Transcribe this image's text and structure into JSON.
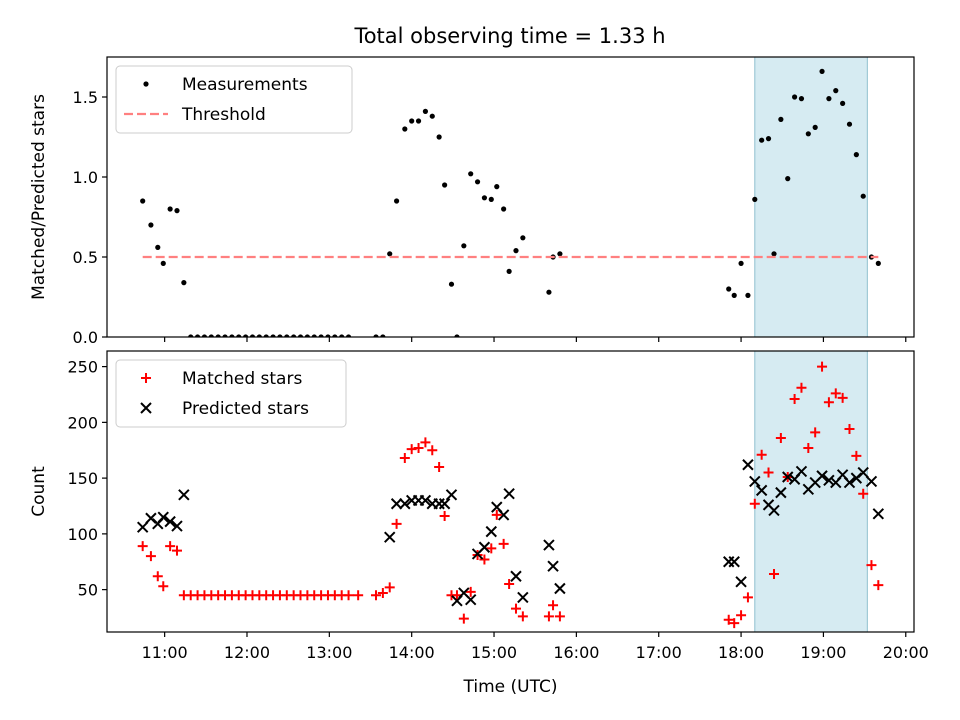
{
  "title": "Total observing time = 1.33 h",
  "chart_data": [
    {
      "type": "scatter",
      "panel": "top",
      "ylabel": "Matched/Predicted stars",
      "xlim": [
        "10:18",
        "20:06"
      ],
      "ylim": [
        0,
        1.75
      ],
      "yticks": [
        0.0,
        0.5,
        1.0,
        1.5
      ],
      "ytick_labels": [
        "0.0",
        "0.5",
        "1.0",
        "1.5"
      ],
      "grid": false,
      "legend_position": "upper-left",
      "highlight_span": [
        "18:10",
        "19:32"
      ],
      "series": [
        {
          "name": "Measurements",
          "marker": "dot",
          "color": "#000000",
          "points": [
            [
              "10:44",
              0.85
            ],
            [
              "10:50",
              0.7
            ],
            [
              "10:55",
              0.56
            ],
            [
              "10:59",
              0.46
            ],
            [
              "11:04",
              0.8
            ],
            [
              "11:09",
              0.79
            ],
            [
              "11:14",
              0.34
            ],
            [
              "11:19",
              0
            ],
            [
              "11:24",
              0
            ],
            [
              "11:29",
              0
            ],
            [
              "11:34",
              0
            ],
            [
              "11:39",
              0
            ],
            [
              "11:44",
              0
            ],
            [
              "11:49",
              0
            ],
            [
              "11:54",
              0
            ],
            [
              "11:59",
              0
            ],
            [
              "12:04",
              0
            ],
            [
              "12:09",
              0
            ],
            [
              "12:14",
              0
            ],
            [
              "12:19",
              0
            ],
            [
              "12:24",
              0
            ],
            [
              "12:29",
              0
            ],
            [
              "12:34",
              0
            ],
            [
              "12:39",
              0
            ],
            [
              "12:44",
              0
            ],
            [
              "12:49",
              0
            ],
            [
              "12:54",
              0
            ],
            [
              "12:59",
              0
            ],
            [
              "13:04",
              0
            ],
            [
              "13:09",
              0
            ],
            [
              "13:14",
              0
            ],
            [
              "13:34",
              0
            ],
            [
              "13:39",
              0
            ],
            [
              "13:44",
              0.52
            ],
            [
              "13:49",
              0.85
            ],
            [
              "13:55",
              1.3
            ],
            [
              "14:00",
              1.35
            ],
            [
              "14:05",
              1.35
            ],
            [
              "14:10",
              1.41
            ],
            [
              "14:15",
              1.38
            ],
            [
              "14:20",
              1.25
            ],
            [
              "14:24",
              0.95
            ],
            [
              "14:29",
              0.33
            ],
            [
              "14:33",
              0
            ],
            [
              "14:38",
              0.57
            ],
            [
              "14:43",
              1.02
            ],
            [
              "14:48",
              0.97
            ],
            [
              "14:53",
              0.87
            ],
            [
              "14:58",
              0.86
            ],
            [
              "15:02",
              0.94
            ],
            [
              "15:07",
              0.8
            ],
            [
              "15:11",
              0.41
            ],
            [
              "15:16",
              0.54
            ],
            [
              "15:21",
              0.62
            ],
            [
              "15:40",
              0.28
            ],
            [
              "15:43",
              0.5
            ],
            [
              "15:48",
              0.52
            ],
            [
              "17:51",
              0.3
            ],
            [
              "17:55",
              0.26
            ],
            [
              "18:00",
              0.46
            ],
            [
              "18:05",
              0.26
            ],
            [
              "18:10",
              0.86
            ],
            [
              "18:15",
              1.23
            ],
            [
              "18:20",
              1.24
            ],
            [
              "18:24",
              0.52
            ],
            [
              "18:29",
              1.36
            ],
            [
              "18:34",
              0.99
            ],
            [
              "18:39",
              1.5
            ],
            [
              "18:44",
              1.49
            ],
            [
              "18:49",
              1.27
            ],
            [
              "18:54",
              1.31
            ],
            [
              "18:59",
              1.66
            ],
            [
              "19:04",
              1.49
            ],
            [
              "19:09",
              1.54
            ],
            [
              "19:14",
              1.46
            ],
            [
              "19:19",
              1.33
            ],
            [
              "19:24",
              1.14
            ],
            [
              "19:29",
              0.88
            ],
            [
              "19:35",
              0.5
            ],
            [
              "19:40",
              0.46
            ]
          ]
        },
        {
          "name": "Threshold",
          "style": "dashed",
          "color": "#ff8080",
          "points": [
            [
              "10:44",
              0.5
            ],
            [
              "19:40",
              0.5
            ]
          ]
        }
      ]
    },
    {
      "type": "scatter",
      "panel": "bottom",
      "xlabel": "Time (UTC)",
      "ylabel": "Count",
      "xlim": [
        "10:18",
        "20:06"
      ],
      "ylim": [
        12,
        264
      ],
      "xticks": [
        "11:00",
        "12:00",
        "13:00",
        "14:00",
        "15:00",
        "16:00",
        "17:00",
        "18:00",
        "19:00",
        "20:00"
      ],
      "yticks": [
        50,
        100,
        150,
        200,
        250
      ],
      "ytick_labels": [
        "50",
        "100",
        "150",
        "200",
        "250"
      ],
      "grid": false,
      "legend_position": "upper-left",
      "highlight_span": [
        "18:10",
        "19:32"
      ],
      "series": [
        {
          "name": "Matched stars",
          "marker": "plus",
          "color": "#ff0000",
          "points": [
            [
              "10:44",
              89
            ],
            [
              "10:50",
              80
            ],
            [
              "10:55",
              62
            ],
            [
              "10:59",
              53
            ],
            [
              "11:04",
              89
            ],
            [
              "11:09",
              85
            ],
            [
              "11:14",
              45
            ],
            [
              "11:19",
              45
            ],
            [
              "11:24",
              45
            ],
            [
              "11:29",
              45
            ],
            [
              "11:34",
              45
            ],
            [
              "11:39",
              45
            ],
            [
              "11:44",
              45
            ],
            [
              "11:49",
              45
            ],
            [
              "11:54",
              45
            ],
            [
              "11:59",
              45
            ],
            [
              "12:04",
              45
            ],
            [
              "12:09",
              45
            ],
            [
              "12:14",
              45
            ],
            [
              "12:19",
              45
            ],
            [
              "12:24",
              45
            ],
            [
              "12:29",
              45
            ],
            [
              "12:34",
              45
            ],
            [
              "12:39",
              45
            ],
            [
              "12:44",
              45
            ],
            [
              "12:49",
              45
            ],
            [
              "12:54",
              45
            ],
            [
              "12:59",
              45
            ],
            [
              "13:04",
              45
            ],
            [
              "13:09",
              45
            ],
            [
              "13:14",
              45
            ],
            [
              "13:21",
              45
            ],
            [
              "13:34",
              45
            ],
            [
              "13:39",
              47
            ],
            [
              "13:44",
              52
            ],
            [
              "13:49",
              109
            ],
            [
              "13:55",
              168
            ],
            [
              "14:00",
              176
            ],
            [
              "14:05",
              177
            ],
            [
              "14:10",
              182
            ],
            [
              "14:15",
              175
            ],
            [
              "14:20",
              160
            ],
            [
              "14:24",
              116
            ],
            [
              "14:29",
              45
            ],
            [
              "14:33",
              45
            ],
            [
              "14:38",
              24
            ],
            [
              "14:43",
              48
            ],
            [
              "14:48",
              81
            ],
            [
              "14:53",
              77
            ],
            [
              "14:58",
              87
            ],
            [
              "15:02",
              117
            ],
            [
              "15:07",
              91
            ],
            [
              "15:11",
              55
            ],
            [
              "15:16",
              33
            ],
            [
              "15:21",
              26
            ],
            [
              "15:40",
              26
            ],
            [
              "15:43",
              36
            ],
            [
              "15:48",
              26
            ],
            [
              "17:51",
              23
            ],
            [
              "17:55",
              20
            ],
            [
              "18:00",
              27
            ],
            [
              "18:05",
              43
            ],
            [
              "18:10",
              127
            ],
            [
              "18:15",
              171
            ],
            [
              "18:20",
              155
            ],
            [
              "18:24",
              64
            ],
            [
              "18:29",
              186
            ],
            [
              "18:34",
              151
            ],
            [
              "18:39",
              221
            ],
            [
              "18:44",
              231
            ],
            [
              "18:49",
              177
            ],
            [
              "18:54",
              191
            ],
            [
              "18:59",
              250
            ],
            [
              "19:04",
              218
            ],
            [
              "19:09",
              226
            ],
            [
              "19:14",
              222
            ],
            [
              "19:19",
              194
            ],
            [
              "19:24",
              170
            ],
            [
              "19:29",
              136
            ],
            [
              "19:35",
              72
            ],
            [
              "19:40",
              54
            ]
          ]
        },
        {
          "name": "Predicted stars",
          "marker": "x",
          "color": "#000000",
          "points": [
            [
              "10:44",
              106
            ],
            [
              "10:50",
              114
            ],
            [
              "10:55",
              109
            ],
            [
              "10:59",
              115
            ],
            [
              "11:04",
              111
            ],
            [
              "11:09",
              107
            ],
            [
              "11:14",
              135
            ],
            [
              "13:44",
              97
            ],
            [
              "13:49",
              127
            ],
            [
              "13:55",
              127
            ],
            [
              "14:00",
              130
            ],
            [
              "14:05",
              130
            ],
            [
              "14:10",
              130
            ],
            [
              "14:15",
              127
            ],
            [
              "14:20",
              127
            ],
            [
              "14:24",
              127
            ],
            [
              "14:29",
              135
            ],
            [
              "14:33",
              40
            ],
            [
              "14:38",
              47
            ],
            [
              "14:43",
              41
            ],
            [
              "14:48",
              82
            ],
            [
              "14:53",
              88
            ],
            [
              "14:58",
              102
            ],
            [
              "15:02",
              124
            ],
            [
              "15:07",
              117
            ],
            [
              "15:11",
              136
            ],
            [
              "15:16",
              62
            ],
            [
              "15:21",
              43
            ],
            [
              "15:40",
              90
            ],
            [
              "15:43",
              71
            ],
            [
              "15:48",
              51
            ],
            [
              "17:51",
              75
            ],
            [
              "17:55",
              75
            ],
            [
              "18:00",
              57
            ],
            [
              "18:05",
              162
            ],
            [
              "18:10",
              147
            ],
            [
              "18:15",
              139
            ],
            [
              "18:20",
              126
            ],
            [
              "18:24",
              121
            ],
            [
              "18:29",
              137
            ],
            [
              "18:34",
              151
            ],
            [
              "18:39",
              149
            ],
            [
              "18:44",
              156
            ],
            [
              "18:49",
              140
            ],
            [
              "18:54",
              146
            ],
            [
              "18:59",
              152
            ],
            [
              "19:04",
              148
            ],
            [
              "19:09",
              146
            ],
            [
              "19:14",
              153
            ],
            [
              "19:19",
              146
            ],
            [
              "19:24",
              150
            ],
            [
              "19:29",
              155
            ],
            [
              "19:35",
              147
            ],
            [
              "19:40",
              118
            ]
          ]
        }
      ]
    }
  ]
}
